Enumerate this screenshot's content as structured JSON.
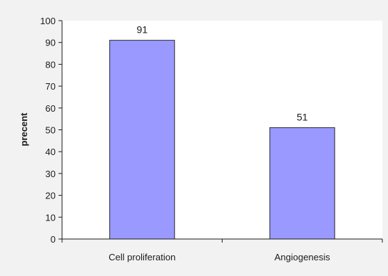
{
  "chart_data": {
    "type": "bar",
    "categories": [
      "Cell proliferation",
      "Angiogenesis"
    ],
    "values": [
      91,
      51
    ],
    "data_labels": [
      "91",
      "51"
    ],
    "title": "",
    "xlabel": "",
    "ylabel": "precent",
    "ylim": [
      0,
      100
    ],
    "yticks": [
      0,
      10,
      20,
      30,
      40,
      50,
      60,
      70,
      80,
      90,
      100
    ],
    "grid": false,
    "legend": "none",
    "colors": {
      "bar_fill": "#9999ff",
      "bar_stroke": "#2a2a2a",
      "plot_background": "#ffffff",
      "page_background": "#f2f2f2"
    }
  }
}
